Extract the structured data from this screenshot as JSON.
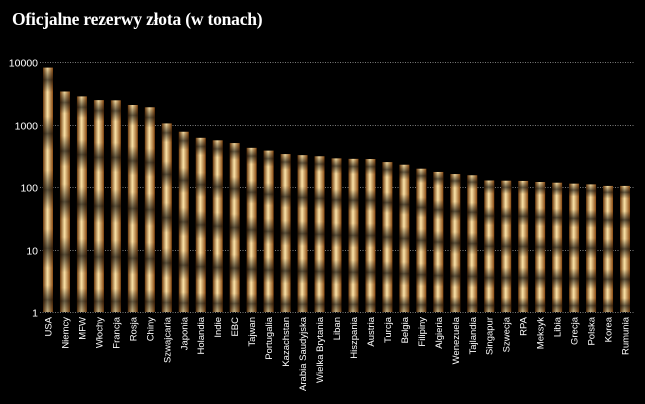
{
  "chart_data": {
    "type": "bar",
    "title": "Oficjalne rezerwy złota (w tonach)",
    "xlabel": "",
    "ylabel": "",
    "yscale": "log",
    "ylim": [
      1,
      10000
    ],
    "yticks": [
      {
        "value": 1,
        "label": "1"
      },
      {
        "value": 10,
        "label": "10"
      },
      {
        "value": 100,
        "label": "100"
      },
      {
        "value": 1000,
        "label": "1000"
      },
      {
        "value": 10000,
        "label": "10000"
      }
    ],
    "grid": true,
    "categories": [
      "USA",
      "Niemcy",
      "MFW",
      "Włochy",
      "Francja",
      "Rosja",
      "Chiny",
      "Szwajcaria",
      "Japonia",
      "Holandia",
      "Indie",
      "EBC",
      "Tajwan",
      "Portugalia",
      "Kazachstan",
      "Arabia Saudyjska",
      "Wielka Brytania",
      "Liban",
      "Hiszpania",
      "Austria",
      "Turcja",
      "Belgia",
      "Filipiny",
      "Algieria",
      "Wenezuela",
      "Tajlandia",
      "Singapur",
      "Szwecja",
      "RPA",
      "Meksyk",
      "Libia",
      "Grecja",
      "Polska",
      "Korea",
      "Rumunia"
    ],
    "values": [
      8133,
      3370,
      2814,
      2452,
      2436,
      2050,
      1885,
      1040,
      765,
      612,
      558,
      504,
      423,
      382,
      336,
      323,
      310,
      287,
      282,
      280,
      250,
      227,
      196,
      174,
      161,
      154,
      127,
      126,
      125,
      120,
      117,
      113,
      110,
      104,
      104
    ],
    "colors": {
      "bar_light": "#f7d08a",
      "bar_mid": "#c77f33",
      "bar_dark": "#2e1502",
      "grid": "#7a7a7a",
      "text": "#ffffff"
    }
  }
}
